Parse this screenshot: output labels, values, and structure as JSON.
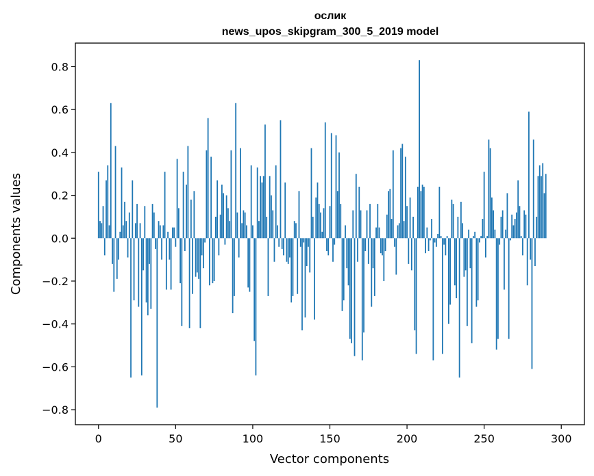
{
  "chart_data": {
    "type": "bar",
    "title": "ослик",
    "subtitle": "news_upos_skipgram_300_5_2019 model",
    "xlabel": "Vector components",
    "ylabel": "Components values",
    "xlim": [
      -15,
      315
    ],
    "ylim": [
      -0.87,
      0.91
    ],
    "xticks": [
      0,
      50,
      100,
      150,
      200,
      250,
      300
    ],
    "yticks": [
      -0.8,
      -0.6,
      -0.4,
      -0.2,
      0.0,
      0.2,
      0.4,
      0.6,
      0.8
    ],
    "ytick_labels": [
      "−0.8",
      "−0.6",
      "−0.4",
      "−0.2",
      "0.0",
      "0.2",
      "0.4",
      "0.6",
      "0.8"
    ],
    "grid": false,
    "bar_color": "#1f77b4",
    "values": [
      0.31,
      0.08,
      0.07,
      0.15,
      -0.08,
      0.27,
      0.34,
      0.06,
      0.63,
      -0.12,
      -0.25,
      0.43,
      -0.19,
      -0.1,
      0.03,
      0.33,
      0.06,
      0.17,
      0.08,
      -0.09,
      0.12,
      -0.65,
      0.27,
      -0.29,
      0.07,
      0.16,
      -0.32,
      0.07,
      -0.64,
      -0.15,
      0.15,
      -0.3,
      -0.36,
      -0.12,
      -0.33,
      0.16,
      0.12,
      -0.05,
      -0.79,
      0.08,
      0.06,
      -0.1,
      0.06,
      0.31,
      -0.24,
      0.03,
      -0.1,
      -0.24,
      0.05,
      0.05,
      -0.04,
      0.37,
      0.14,
      -0.21,
      -0.41,
      0.31,
      -0.06,
      0.25,
      0.43,
      -0.42,
      0.18,
      -0.26,
      0.22,
      -0.18,
      -0.16,
      -0.19,
      -0.42,
      -0.08,
      -0.14,
      -0.02,
      0.41,
      0.56,
      -0.22,
      0.38,
      -0.21,
      -0.2,
      0.1,
      0.27,
      -0.08,
      0.11,
      0.25,
      0.21,
      -0.03,
      0.2,
      0.14,
      0.08,
      0.41,
      -0.35,
      -0.27,
      0.63,
      0.12,
      -0.09,
      0.42,
      0.07,
      0.13,
      0.12,
      0.06,
      -0.23,
      -0.25,
      0.34,
      0.06,
      -0.48,
      -0.64,
      0.33,
      0.08,
      0.29,
      0.26,
      0.29,
      0.53,
      0.1,
      -0.27,
      0.29,
      0.2,
      0.13,
      -0.11,
      0.34,
      0.06,
      -0.04,
      0.55,
      -0.05,
      -0.08,
      0.26,
      -0.11,
      -0.12,
      -0.09,
      -0.3,
      -0.27,
      0.08,
      0.07,
      -0.26,
      0.22,
      -0.04,
      -0.43,
      -0.02,
      -0.37,
      -0.13,
      -0.04,
      -0.16,
      0.42,
      0.1,
      -0.38,
      0.19,
      0.26,
      0.16,
      0.12,
      0.03,
      0.14,
      0.54,
      -0.06,
      -0.08,
      0.15,
      0.49,
      -0.11,
      -0.03,
      0.48,
      0.22,
      0.4,
      0.16,
      -0.34,
      -0.29,
      0.06,
      -0.14,
      -0.22,
      -0.47,
      -0.49,
      0.13,
      -0.55,
      0.3,
      -0.11,
      0.24,
      0.13,
      -0.57,
      -0.44,
      -0.06,
      0.13,
      -0.12,
      0.16,
      -0.32,
      -0.14,
      -0.27,
      0.05,
      0.16,
      0.05,
      -0.07,
      -0.08,
      -0.2,
      -0.06,
      0.11,
      0.22,
      0.23,
      0.09,
      0.41,
      -0.04,
      -0.17,
      0.06,
      0.07,
      0.42,
      0.44,
      0.08,
      0.38,
      0.15,
      -0.12,
      0.19,
      -0.15,
      0.1,
      -0.43,
      -0.54,
      0.24,
      0.83,
      0.22,
      0.25,
      0.24,
      -0.07,
      0.05,
      -0.06,
      -0.01,
      0.09,
      -0.57,
      -0.02,
      -0.04,
      0.02,
      0.24,
      0.01,
      -0.54,
      -0.03,
      -0.08,
      0.01,
      -0.4,
      -0.31,
      0.18,
      0.16,
      -0.22,
      -0.28,
      0.1,
      -0.65,
      0.17,
      0.07,
      -0.18,
      -0.15,
      -0.41,
      0.04,
      -0.14,
      -0.49,
      0.01,
      0.03,
      -0.32,
      -0.29,
      -0.02,
      0.01,
      0.09,
      0.31,
      -0.09,
      0.01,
      0.46,
      0.42,
      0.19,
      0.13,
      0.04,
      -0.52,
      -0.47,
      -0.03,
      0.1,
      0.13,
      -0.24,
      0.04,
      0.21,
      -0.47,
      -0.01,
      0.11,
      0.06,
      0.09,
      0.12,
      0.27,
      0.15,
      0.01,
      -0.08,
      0.13,
      0.11,
      -0.22,
      0.59,
      -0.1,
      -0.61,
      0.46,
      -0.13,
      0.1,
      0.29,
      0.34,
      0.29,
      0.35,
      0.21,
      0.3
    ]
  }
}
